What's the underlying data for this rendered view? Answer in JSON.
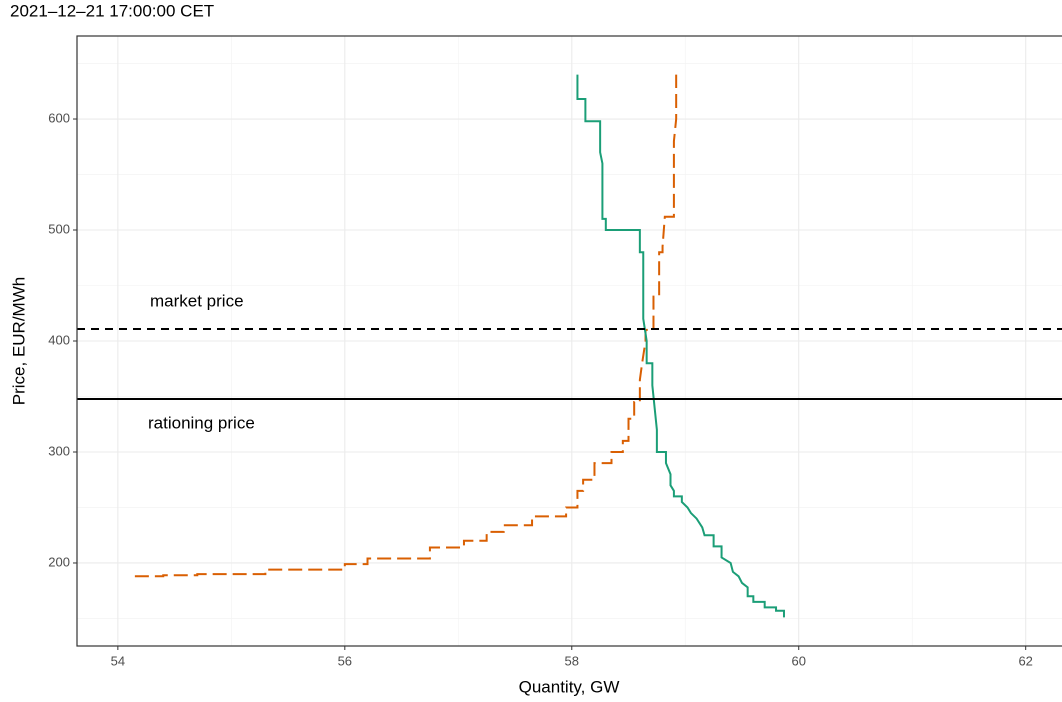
{
  "chart_data": {
    "type": "step",
    "title": "2021–12–21 17:00:00 CET",
    "x_label": "Quantity, GW",
    "y_label": "Price, EUR/MWh",
    "xlim": [
      53.64,
      62.32
    ],
    "xticks": [
      54,
      56,
      58,
      60,
      62
    ],
    "ylim": [
      125.2,
      674.8
    ],
    "yticks": [
      200,
      300,
      400,
      500,
      600
    ],
    "grid": true,
    "hlines": [
      {
        "value": 410.8,
        "label": "market price",
        "style": "dashed"
      },
      {
        "value": 347.7,
        "label": "rationing price",
        "style": "solid"
      }
    ],
    "series": [
      {
        "color": "#d95f02",
        "style": "dashed",
        "x": [
          54.15,
          54.4,
          54.4,
          54.7,
          54.7,
          55.3,
          55.3,
          56.0,
          56.0,
          56.2,
          56.2,
          56.75,
          56.75,
          57.05,
          57.05,
          57.25,
          57.25,
          57.4,
          57.4,
          57.65,
          57.65,
          57.95,
          57.95,
          58.05,
          58.05,
          58.1,
          58.1,
          58.2,
          58.2,
          58.35,
          58.35,
          58.45,
          58.45,
          58.5,
          58.5,
          58.55,
          58.55,
          58.6,
          58.6,
          58.62,
          58.65,
          58.65,
          58.72,
          58.72,
          58.77,
          58.77,
          58.8,
          58.8,
          58.82,
          58.9,
          58.9,
          58.92,
          58.92
        ],
        "values": [
          188,
          188,
          189,
          189,
          190,
          190,
          194,
          194,
          199,
          199,
          204,
          204,
          214,
          214,
          220,
          220,
          228,
          228,
          234,
          234,
          242,
          242,
          250,
          250,
          265,
          265,
          275,
          275,
          290,
          290,
          300,
          300,
          310,
          310,
          330,
          330,
          345,
          345,
          365,
          380,
          400,
          410,
          410,
          440,
          440,
          480,
          480,
          485,
          512,
          512,
          580,
          600,
          640
        ]
      },
      {
        "color": "#1b9e77",
        "style": "solid",
        "x": [
          58.05,
          58.05,
          58.12,
          58.12,
          58.25,
          58.25,
          58.27,
          58.27,
          58.3,
          58.3,
          58.6,
          58.6,
          58.63,
          58.63,
          58.66,
          58.66,
          58.71,
          58.71,
          58.73,
          58.75,
          58.75,
          58.83,
          58.83,
          58.87,
          58.87,
          58.9,
          58.9,
          58.97,
          58.97,
          59.02,
          59.05,
          59.1,
          59.15,
          59.17,
          59.25,
          59.25,
          59.32,
          59.32,
          59.4,
          59.42,
          59.47,
          59.5,
          59.55,
          59.55,
          59.6,
          59.6,
          59.7,
          59.7,
          59.8,
          59.8,
          59.87,
          59.87
        ],
        "values": [
          640,
          618,
          618,
          598,
          598,
          570,
          560,
          510,
          510,
          500,
          500,
          480,
          480,
          420,
          400,
          380,
          380,
          360,
          340,
          320,
          300,
          300,
          290,
          280,
          270,
          265,
          260,
          260,
          255,
          250,
          245,
          240,
          232,
          225,
          225,
          215,
          215,
          205,
          200,
          192,
          188,
          182,
          178,
          170,
          170,
          165,
          165,
          160,
          160,
          157,
          157,
          151
        ]
      }
    ]
  }
}
